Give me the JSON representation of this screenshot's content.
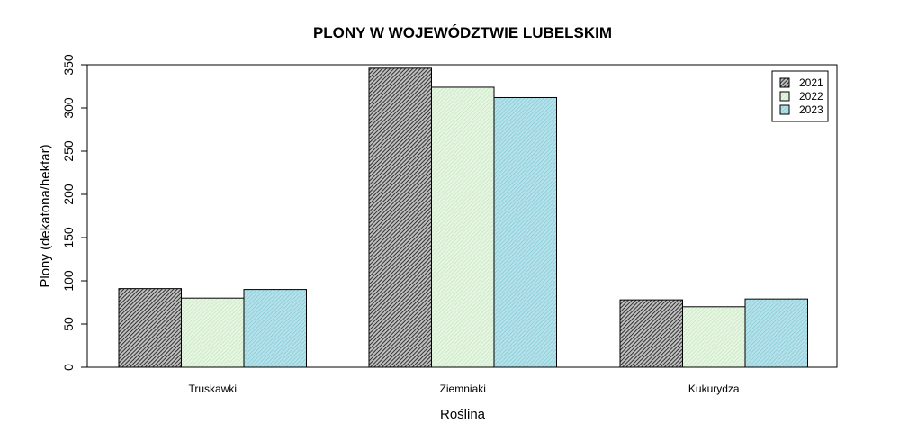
{
  "chart_data": {
    "type": "bar",
    "title": "PLONY W WOJEWÓDZTWIE LUBELSKIM",
    "xlabel": "Roślina",
    "ylabel": "Plony (dekatona/hektar)",
    "categories": [
      "Truskawki",
      "Ziemniaki",
      "Kukurydza"
    ],
    "series": [
      {
        "name": "2021",
        "values": [
          91,
          346,
          78
        ],
        "color": "#555555"
      },
      {
        "name": "2022",
        "values": [
          80,
          324,
          70
        ],
        "color": "#d6f0d2"
      },
      {
        "name": "2023",
        "values": [
          90,
          312,
          79
        ],
        "color": "#96d4de"
      }
    ],
    "ylim": [
      0,
      350
    ],
    "yticks": [
      0,
      50,
      100,
      150,
      200,
      250,
      300,
      350
    ],
    "grid": false,
    "legend": "top-right",
    "bar_fill": "hatched"
  }
}
